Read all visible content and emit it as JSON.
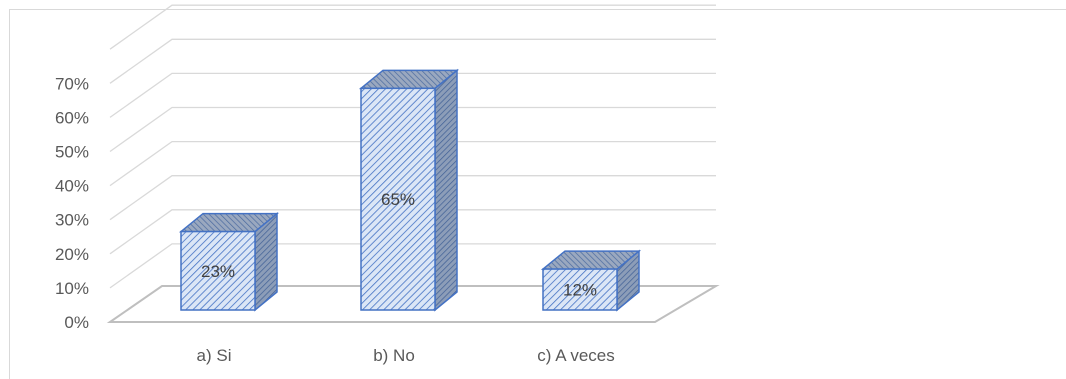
{
  "chart_data": {
    "type": "bar",
    "categories": [
      "a) Si",
      "b) No",
      "c) A veces"
    ],
    "values": [
      23,
      65,
      12
    ],
    "data_labels": [
      "23%",
      "65%",
      "12%"
    ],
    "ylim": [
      0,
      70
    ],
    "yticks": [
      "0%",
      "10%",
      "20%",
      "30%",
      "40%",
      "50%",
      "60%",
      "70%"
    ],
    "title": "",
    "xlabel": "",
    "ylabel": "",
    "grid": true,
    "legend": "none",
    "style": "3d-column",
    "colors": {
      "bar_fill": "#dbe6f6",
      "bar_stripe": "#4472c4",
      "bar_stroke": "#4472c4",
      "bar_side": "#8c9db8",
      "grid": "#d9d9d9",
      "floor": "#bfbfbf"
    }
  }
}
